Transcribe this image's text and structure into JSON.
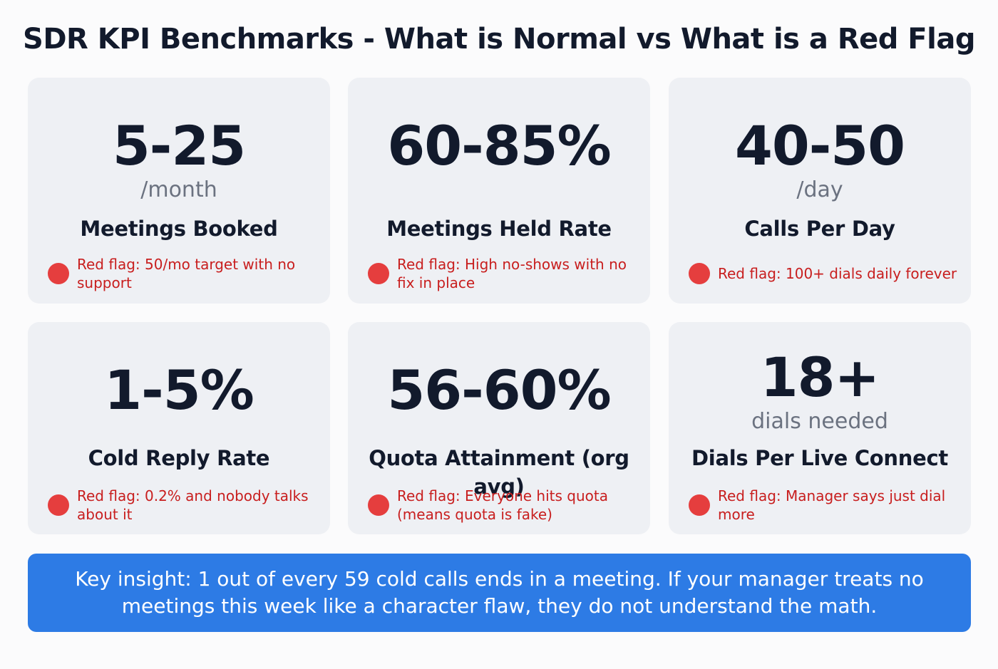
{
  "title": "SDR KPI Benchmarks - What is Normal vs What is a Red Flag",
  "cards": [
    {
      "value": "5-25",
      "unit": "/month",
      "label": "Meetings Booked",
      "red_flag": "Red flag: 50/mo target with no support"
    },
    {
      "value": "60-85%",
      "label": "Meetings Held Rate",
      "red_flag": "Red flag: High no-shows with no fix in place"
    },
    {
      "value": "40-50",
      "unit": "/day",
      "label": "Calls Per Day",
      "red_flag": "Red flag: 100+ dials daily forever"
    },
    {
      "value": "1-5%",
      "label": "Cold Reply Rate",
      "red_flag": "Red flag: 0.2% and nobody talks about it"
    },
    {
      "value": "56-60%",
      "label": "Quota Attainment (org avg)",
      "red_flag": "Red flag: Everyone hits quota (means quota is fake)"
    },
    {
      "value": "18+",
      "unit": "dials needed",
      "label": "Dials Per Live Connect",
      "red_flag": "Red flag: Manager says just dial more"
    }
  ],
  "insight": "Key insight: 1 out of every 59 cold calls ends in a meeting. If your manager treats no meetings this week like a character flaw, they do not understand the math."
}
